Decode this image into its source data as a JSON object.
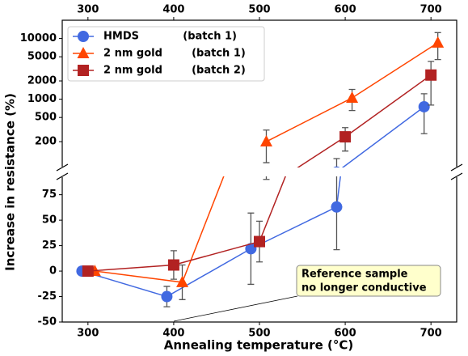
{
  "chart_data": {
    "type": "line",
    "xlabel": "Annealing temperature (°C)",
    "ylabel": "Increase in resistance (%)",
    "xlim": [
      270,
      730
    ],
    "xticks": [
      300,
      400,
      500,
      600,
      700
    ],
    "panels": [
      {
        "ylim": [
          75,
          20000
        ],
        "yticks": [
          200,
          500,
          1000,
          2000,
          5000,
          10000
        ],
        "log": true
      },
      {
        "ylim": [
          -50,
          93
        ],
        "yticks": [
          -50,
          -25,
          0,
          25,
          50,
          75
        ],
        "log": false
      }
    ],
    "legend": "upper left",
    "series": [
      {
        "name": "HMDS            (batch 1)",
        "color": "#4169e1",
        "marker": "circle",
        "x": [
          293,
          392,
          490,
          590,
          692
        ],
        "values": [
          0,
          -25,
          22,
          63,
          750
        ],
        "errors": [
          0,
          10,
          35,
          42,
          480
        ]
      },
      {
        "name": "2 nm gold        (batch 1)",
        "color": "#ff4500",
        "marker": "triangle",
        "x": [
          308,
          410,
          508,
          608,
          708
        ],
        "values": [
          0,
          -11,
          200,
          1050,
          8500
        ],
        "errors": [
          0,
          17,
          110,
          400,
          4000
        ]
      },
      {
        "name": "2 nm gold        (batch 2)",
        "color": "#b22222",
        "marker": "square",
        "x": [
          300,
          400,
          500,
          600,
          700
        ],
        "values": [
          0,
          6,
          29,
          240,
          2500
        ],
        "errors": [
          0,
          14,
          20,
          100,
          1700
        ]
      }
    ],
    "annotation": [
      "Reference sample",
      "no longer conductive"
    ]
  }
}
